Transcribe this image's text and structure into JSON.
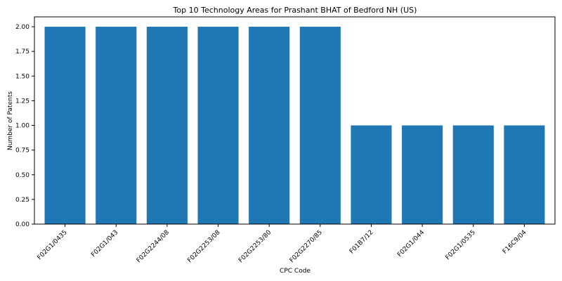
{
  "chart_data": {
    "type": "bar",
    "title": "Top 10 Technology Areas for Prashant BHAT of Bedford NH (US)",
    "xlabel": "CPC Code",
    "ylabel": "Number of Patents",
    "categories": [
      "F02G1/0435",
      "F02G1/043",
      "F02G2244/08",
      "F02G2253/08",
      "F02G2253/80",
      "F02G2270/85",
      "F01B7/12",
      "F02G1/044",
      "F02G1/0535",
      "F16C9/04"
    ],
    "values": [
      2,
      2,
      2,
      2,
      2,
      2,
      1,
      1,
      1,
      1
    ],
    "ylim": [
      0,
      2.1
    ],
    "yticks": [
      "0.00",
      "0.25",
      "0.50",
      "0.75",
      "1.00",
      "1.25",
      "1.50",
      "1.75",
      "2.00"
    ],
    "bar_color": "#1f77b4",
    "grid": false
  }
}
